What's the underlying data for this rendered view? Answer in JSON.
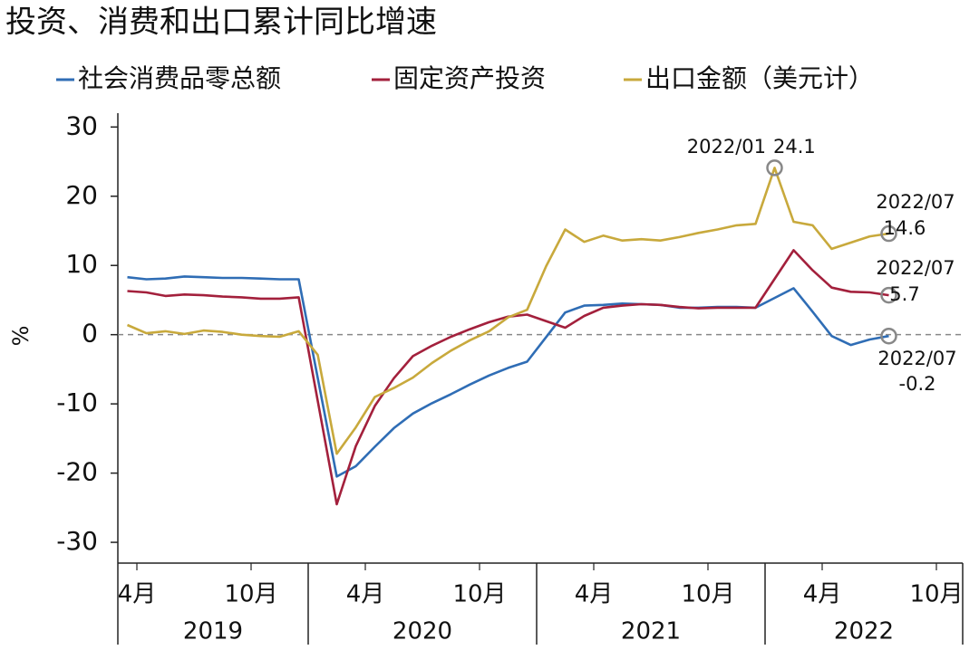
{
  "chart_data": {
    "type": "line",
    "title": "投资、消费和出口累计同比增速",
    "ylabel": "%",
    "xlim": [
      "2019-03",
      "2022-11"
    ],
    "ylim": [
      -33,
      32
    ],
    "yticks": [
      -30,
      -20,
      -10,
      0,
      10,
      20,
      30
    ],
    "xticks": [
      {
        "value": "2019-04",
        "label": "4月"
      },
      {
        "value": "2019-10",
        "label": "10月"
      },
      {
        "value": "2020-04",
        "label": "4月"
      },
      {
        "value": "2020-10",
        "label": "10月"
      },
      {
        "value": "2021-04",
        "label": "4月"
      },
      {
        "value": "2021-10",
        "label": "10月"
      },
      {
        "value": "2022-04",
        "label": "4月"
      },
      {
        "value": "2022-10",
        "label": "10月"
      }
    ],
    "year_labels": [
      "2019",
      "2020",
      "2021",
      "2022"
    ],
    "series": [
      {
        "name": "社会消费品零总额",
        "color": "#2f6db5",
        "x": [
          "2019-03",
          "2019-04",
          "2019-05",
          "2019-06",
          "2019-07",
          "2019-08",
          "2019-09",
          "2019-10",
          "2019-11",
          "2019-12",
          "2020-02",
          "2020-03",
          "2020-04",
          "2020-05",
          "2020-06",
          "2020-07",
          "2020-08",
          "2020-09",
          "2020-10",
          "2020-11",
          "2020-12",
          "2021-02",
          "2021-03",
          "2021-04",
          "2021-05",
          "2021-06",
          "2021-07",
          "2021-08",
          "2021-09",
          "2021-10",
          "2021-11",
          "2021-12",
          "2022-02",
          "2022-03",
          "2022-04",
          "2022-05",
          "2022-06",
          "2022-07"
        ],
        "values": [
          8.3,
          8.0,
          8.1,
          8.4,
          8.3,
          8.2,
          8.2,
          8.1,
          8.0,
          8.0,
          -20.5,
          -19.0,
          -16.2,
          -13.5,
          -11.4,
          -9.9,
          -8.6,
          -7.2,
          -5.9,
          -4.8,
          -3.9,
          3.2,
          4.2,
          4.3,
          4.5,
          4.4,
          4.3,
          3.9,
          3.9,
          4.0,
          4.0,
          3.9,
          6.7,
          3.3,
          -0.2,
          -1.5,
          -0.7,
          -0.2
        ],
        "annotations": [
          {
            "x": "2022-07",
            "date": "2022/07",
            "label": "-0.2"
          }
        ]
      },
      {
        "name": "固定资产投资",
        "color": "#a3203c",
        "x": [
          "2019-03",
          "2019-04",
          "2019-05",
          "2019-06",
          "2019-07",
          "2019-08",
          "2019-09",
          "2019-10",
          "2019-11",
          "2019-12",
          "2020-02",
          "2020-03",
          "2020-04",
          "2020-05",
          "2020-06",
          "2020-07",
          "2020-08",
          "2020-09",
          "2020-10",
          "2020-11",
          "2020-12",
          "2021-02",
          "2021-03",
          "2021-04",
          "2021-05",
          "2021-06",
          "2021-07",
          "2021-08",
          "2021-09",
          "2021-10",
          "2021-11",
          "2021-12",
          "2022-02",
          "2022-03",
          "2022-04",
          "2022-05",
          "2022-06",
          "2022-07"
        ],
        "values": [
          6.3,
          6.1,
          5.6,
          5.8,
          5.7,
          5.5,
          5.4,
          5.2,
          5.2,
          5.4,
          -24.5,
          -16.1,
          -10.3,
          -6.3,
          -3.1,
          -1.6,
          -0.3,
          0.8,
          1.8,
          2.6,
          2.9,
          1.0,
          2.7,
          3.9,
          4.2,
          4.4,
          4.3,
          4.0,
          3.8,
          3.9,
          3.9,
          3.9,
          12.2,
          9.3,
          6.8,
          6.2,
          6.1,
          5.7
        ],
        "annotations": [
          {
            "x": "2022-07",
            "date": "2022/07",
            "label": "5.7"
          }
        ]
      },
      {
        "name": "出口金额（美元计）",
        "color": "#c8a93c",
        "x": [
          "2019-03",
          "2019-04",
          "2019-05",
          "2019-06",
          "2019-07",
          "2019-08",
          "2019-09",
          "2019-10",
          "2019-11",
          "2019-12",
          "2020-01",
          "2020-02",
          "2020-03",
          "2020-04",
          "2020-05",
          "2020-06",
          "2020-07",
          "2020-08",
          "2020-09",
          "2020-10",
          "2020-11",
          "2020-12",
          "2021-01",
          "2021-02",
          "2021-03",
          "2021-04",
          "2021-05",
          "2021-06",
          "2021-07",
          "2021-08",
          "2021-09",
          "2021-10",
          "2021-11",
          "2021-12",
          "2022-01",
          "2022-02",
          "2022-03",
          "2022-04",
          "2022-05",
          "2022-06",
          "2022-07"
        ],
        "values": [
          1.4,
          0.2,
          0.5,
          0.1,
          0.6,
          0.4,
          0.0,
          -0.2,
          -0.3,
          0.5,
          -2.9,
          -17.2,
          -13.4,
          -9.0,
          -7.7,
          -6.2,
          -4.1,
          -2.3,
          -0.8,
          0.5,
          2.5,
          3.6,
          9.9,
          15.2,
          13.4,
          14.3,
          13.6,
          13.8,
          13.6,
          14.1,
          14.7,
          15.2,
          15.8,
          16.0,
          24.1,
          16.3,
          15.8,
          12.4,
          13.3,
          14.2,
          14.6
        ],
        "annotations": [
          {
            "x": "2022-01",
            "date": "2022/01",
            "label": "24.1"
          },
          {
            "x": "2022-07",
            "date": "2022/07",
            "label": "14.6"
          }
        ]
      }
    ]
  }
}
